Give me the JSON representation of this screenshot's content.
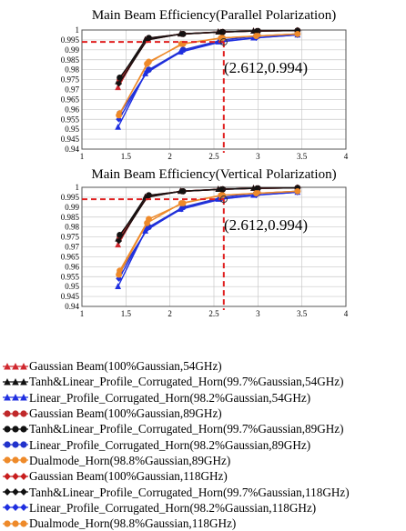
{
  "chart_data": [
    {
      "type": "line",
      "title": "Main Beam Efficiency(Parallel Polarization)",
      "xlim": [
        1,
        4
      ],
      "ylim": [
        0.94,
        1
      ],
      "xticks": [
        "1",
        "1.5",
        "2",
        "2.5",
        "3",
        "3.5",
        "4"
      ],
      "yticks": [
        "0.94",
        "0.945",
        "0.95",
        "0.955",
        "0.96",
        "0.965",
        "0.97",
        "0.975",
        "0.98",
        "0.985",
        "0.99",
        "0.995",
        "1"
      ],
      "grid": true,
      "annotation": {
        "text": "(2.612,0.994)",
        "x": 2.612,
        "y": 0.994
      },
      "series": [
        {
          "name": "Gaussian Beam(100%Gaussian,54GHz)",
          "x": [
            1.41,
            1.72,
            2.12,
            2.55,
            2.95,
            3.45
          ],
          "y": [
            0.971,
            0.995,
            0.998,
            0.999,
            0.9995,
            0.9997
          ]
        },
        {
          "name": "Tanh&Linear_Profile_Corrugated_Horn(99.7%Gaussian,54GHz)",
          "x": [
            1.41,
            1.72,
            2.12,
            2.55,
            2.95,
            3.45
          ],
          "y": [
            0.974,
            0.995,
            0.998,
            0.999,
            0.9995,
            0.9997
          ]
        },
        {
          "name": "Linear_Profile_Corrugated_Horn(98.2%Gaussian,54GHz)",
          "x": [
            1.41,
            1.72,
            2.12,
            2.55,
            2.95,
            3.45
          ],
          "y": [
            0.951,
            0.978,
            0.989,
            0.994,
            0.996,
            0.9975
          ]
        },
        {
          "name": "Gaussian Beam(100%Gaussian,89GHz)",
          "x": [
            1.43,
            1.76,
            2.15,
            2.6,
            3.0,
            3.45
          ],
          "y": [
            0.975,
            0.996,
            0.998,
            0.999,
            0.9995,
            0.9997
          ]
        },
        {
          "name": "Tanh&Linear_Profile_Corrugated_Horn(99.7%Gaussian,89GHz)",
          "x": [
            1.43,
            1.76,
            2.15,
            2.6,
            3.0,
            3.45
          ],
          "y": [
            0.976,
            0.996,
            0.998,
            0.999,
            0.9995,
            0.9997
          ]
        },
        {
          "name": "Linear_Profile_Corrugated_Horn(98.2%Gaussian,89GHz)",
          "x": [
            1.43,
            1.76,
            2.15,
            2.6,
            3.0,
            3.45
          ],
          "y": [
            0.958,
            0.98,
            0.99,
            0.995,
            0.997,
            0.998
          ]
        },
        {
          "name": "Dualmode_Horn(98.8%Gaussian,89GHz)",
          "x": [
            1.43,
            1.76,
            2.15,
            2.6,
            3.0,
            3.45
          ],
          "y": [
            0.958,
            0.984,
            0.993,
            0.996,
            0.997,
            0.998
          ]
        },
        {
          "name": "Gaussian Beam(100%Gaussian,118GHz)",
          "x": [
            1.42,
            1.74,
            2.13,
            2.58,
            2.98,
            3.45
          ],
          "y": [
            0.973,
            0.995,
            0.998,
            0.999,
            0.9995,
            0.9997
          ]
        },
        {
          "name": "Tanh&Linear_Profile_Corrugated_Horn(99.7%Gaussian,118GHz)",
          "x": [
            1.42,
            1.74,
            2.13,
            2.58,
            2.98,
            3.45
          ],
          "y": [
            0.973,
            0.995,
            0.998,
            0.999,
            0.9995,
            0.9997
          ]
        },
        {
          "name": "Linear_Profile_Corrugated_Horn(98.2%Gaussian,118GHz)",
          "x": [
            1.42,
            1.74,
            2.13,
            2.58,
            2.98,
            3.45
          ],
          "y": [
            0.955,
            0.979,
            0.989,
            0.994,
            0.996,
            0.9975
          ]
        },
        {
          "name": "Dualmode_Horn(98.8%Gaussian,118GHz)",
          "x": [
            1.42,
            1.74,
            2.13,
            2.58,
            2.98,
            3.45
          ],
          "y": [
            0.957,
            0.983,
            0.993,
            0.996,
            0.997,
            0.998
          ]
        }
      ]
    },
    {
      "type": "line",
      "title": "Main Beam Efficiency(Vertical Polarization)",
      "xlim": [
        1,
        4
      ],
      "ylim": [
        0.94,
        1
      ],
      "xticks": [
        "1",
        "1.5",
        "2",
        "2.5",
        "3",
        "3.5",
        "4"
      ],
      "yticks": [
        "0.94",
        "0.945",
        "0.95",
        "0.955",
        "0.96",
        "0.965",
        "0.97",
        "0.975",
        "0.98",
        "0.985",
        "0.99",
        "0.995",
        "1"
      ],
      "grid": true,
      "annotation": {
        "text": "(2.612,0.994)",
        "x": 2.612,
        "y": 0.994
      },
      "series": [
        {
          "name": "Gaussian Beam(100%Gaussian,54GHz)",
          "x": [
            1.41,
            1.72,
            2.12,
            2.55,
            2.95,
            3.45
          ],
          "y": [
            0.971,
            0.995,
            0.998,
            0.999,
            0.9995,
            0.9997
          ]
        },
        {
          "name": "Tanh&Linear_Profile_Corrugated_Horn(99.7%Gaussian,54GHz)",
          "x": [
            1.41,
            1.72,
            2.12,
            2.55,
            2.95,
            3.45
          ],
          "y": [
            0.974,
            0.995,
            0.998,
            0.999,
            0.9995,
            0.9997
          ]
        },
        {
          "name": "Linear_Profile_Corrugated_Horn(98.2%Gaussian,54GHz)",
          "x": [
            1.41,
            1.72,
            2.12,
            2.55,
            2.95,
            3.45
          ],
          "y": [
            0.95,
            0.978,
            0.989,
            0.994,
            0.996,
            0.9975
          ]
        },
        {
          "name": "Gaussian Beam(100%Gaussian,89GHz)",
          "x": [
            1.43,
            1.76,
            2.15,
            2.6,
            3.0,
            3.45
          ],
          "y": [
            0.975,
            0.996,
            0.998,
            0.999,
            0.9995,
            0.9997
          ]
        },
        {
          "name": "Tanh&Linear_Profile_Corrugated_Horn(99.7%Gaussian,89GHz)",
          "x": [
            1.43,
            1.76,
            2.15,
            2.6,
            3.0,
            3.45
          ],
          "y": [
            0.976,
            0.996,
            0.998,
            0.999,
            0.9995,
            0.9997
          ]
        },
        {
          "name": "Linear_Profile_Corrugated_Horn(98.2%Gaussian,89GHz)",
          "x": [
            1.43,
            1.76,
            2.15,
            2.6,
            3.0,
            3.45
          ],
          "y": [
            0.957,
            0.98,
            0.99,
            0.995,
            0.997,
            0.998
          ]
        },
        {
          "name": "Dualmode_Horn(98.8%Gaussian,89GHz)",
          "x": [
            1.43,
            1.76,
            2.15,
            2.6,
            3.0,
            3.45
          ],
          "y": [
            0.958,
            0.984,
            0.992,
            0.996,
            0.997,
            0.998
          ]
        },
        {
          "name": "Gaussian Beam(100%Gaussian,118GHz)",
          "x": [
            1.42,
            1.74,
            2.13,
            2.58,
            2.98,
            3.45
          ],
          "y": [
            0.973,
            0.995,
            0.998,
            0.999,
            0.9995,
            0.9997
          ]
        },
        {
          "name": "Tanh&Linear_Profile_Corrugated_Horn(99.7%Gaussian,118GHz)",
          "x": [
            1.42,
            1.74,
            2.13,
            2.58,
            2.98,
            3.45
          ],
          "y": [
            0.973,
            0.995,
            0.998,
            0.999,
            0.9995,
            0.9997
          ]
        },
        {
          "name": "Linear_Profile_Corrugated_Horn(98.2%Gaussian,118GHz)",
          "x": [
            1.42,
            1.74,
            2.13,
            2.58,
            2.98,
            3.45
          ],
          "y": [
            0.954,
            0.979,
            0.989,
            0.994,
            0.996,
            0.9975
          ]
        },
        {
          "name": "Dualmode_Horn(98.8%Gaussian,118GHz)",
          "x": [
            1.42,
            1.74,
            2.13,
            2.58,
            2.98,
            3.45
          ],
          "y": [
            0.956,
            0.982,
            0.992,
            0.996,
            0.997,
            0.998
          ]
        }
      ]
    }
  ],
  "legend": {
    "items": [
      {
        "label": "Gaussian Beam(100%Gaussian,54GHz)",
        "marker": "triangle",
        "color": "#d0282f"
      },
      {
        "label": "Tanh&Linear_Profile_Corrugated_Horn(99.7%Gaussian,54GHz)",
        "marker": "triangle",
        "color": "#111111"
      },
      {
        "label": "Linear_Profile_Corrugated_Horn(98.2%Gaussian,54GHz)",
        "marker": "triangle",
        "color": "#1f2fe0"
      },
      {
        "label": "Gaussian Beam(100%Gaussian,89GHz)",
        "marker": "circle",
        "color": "#c0282a"
      },
      {
        "label": "Tanh&Linear_Profile_Corrugated_Horn(99.7%Gaussian,89GHz)",
        "marker": "circle",
        "color": "#111111"
      },
      {
        "label": "Linear_Profile_Corrugated_Horn(98.2%Gaussian,89GHz)",
        "marker": "circle",
        "color": "#2233cc"
      },
      {
        "label": "Dualmode_Horn(98.8%Gaussian,89GHz)",
        "marker": "circle",
        "color": "#ee8a2a"
      },
      {
        "label": "Gaussian Beam(100%Gaussian,118GHz)",
        "marker": "diamond",
        "color": "#c81e1e"
      },
      {
        "label": "Tanh&Linear_Profile_Corrugated_Horn(99.7%Gaussian,118GHz)",
        "marker": "diamond",
        "color": "#111111"
      },
      {
        "label": "Linear_Profile_Corrugated_Horn(98.2%Gaussian,118GHz)",
        "marker": "diamond",
        "color": "#1f2fe0"
      },
      {
        "label": "Dualmode_Horn(98.8%Gaussian,118GHz)",
        "marker": "circle",
        "color": "#ee8a2a"
      }
    ]
  },
  "colors": {
    "reference_line": "#e02020",
    "grid": "#c8c8c8"
  }
}
